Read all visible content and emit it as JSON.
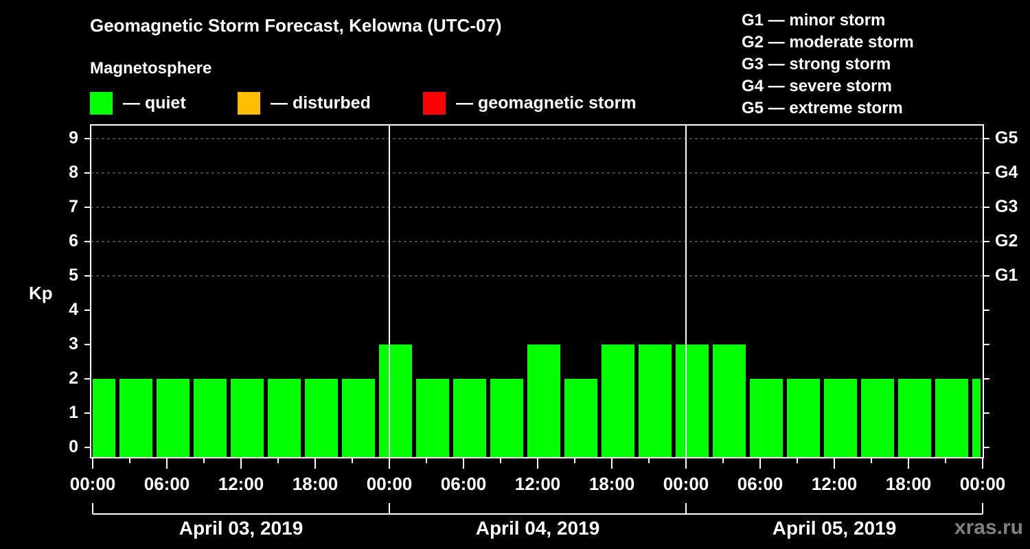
{
  "header": {
    "title": "Geomagnetic Storm Forecast, Kelowna (UTC-07)",
    "subtitle": "Magnetosphere"
  },
  "legend": [
    {
      "label": "— quiet",
      "color": "#00ff00"
    },
    {
      "label": "— disturbed",
      "color": "#ffbf00"
    },
    {
      "label": "— geomagnetic storm",
      "color": "#ff0000"
    }
  ],
  "g_legend": [
    "G1 — minor storm",
    "G2 — moderate storm",
    "G3 — strong storm",
    "G4 — severe storm",
    "G5 — extreme storm"
  ],
  "axes": {
    "ylabel": "Kp",
    "yticks": [
      "0",
      "1",
      "2",
      "3",
      "4",
      "5",
      "6",
      "7",
      "8",
      "9"
    ],
    "g_ticks": [
      {
        "label": "G1",
        "kp": 5
      },
      {
        "label": "G2",
        "kp": 6
      },
      {
        "label": "G3",
        "kp": 7
      },
      {
        "label": "G4",
        "kp": 8
      },
      {
        "label": "G5",
        "kp": 9
      }
    ],
    "xticks": [
      "00:00",
      "06:00",
      "12:00",
      "18:00",
      "00:00",
      "06:00",
      "12:00",
      "18:00",
      "00:00",
      "06:00",
      "12:00",
      "18:00",
      "00:00"
    ],
    "dates": [
      "April 03, 2019",
      "April 04, 2019",
      "April 05, 2019"
    ]
  },
  "watermark": "xras.ru",
  "chart_data": {
    "type": "bar",
    "title": "Geomagnetic Storm Forecast, Kelowna (UTC-07)",
    "xlabel": "",
    "ylabel": "Kp",
    "ylim": [
      0,
      9
    ],
    "grid": "dashed horizontal at Kp 5-9",
    "bar_interval_hours": 3,
    "bar_offset_note": "3-hour UTC blocks shifted to UTC-07; first and last bars partial",
    "categories": [
      "Apr03 ~-01:00",
      "Apr03 02:00",
      "Apr03 05:00",
      "Apr03 08:00",
      "Apr03 11:00",
      "Apr03 14:00",
      "Apr03 17:00",
      "Apr03 20:00",
      "Apr03 23:00",
      "Apr04 02:00",
      "Apr04 05:00",
      "Apr04 08:00",
      "Apr04 11:00",
      "Apr04 14:00",
      "Apr04 17:00",
      "Apr04 20:00",
      "Apr04 23:00",
      "Apr05 02:00",
      "Apr05 05:00",
      "Apr05 08:00",
      "Apr05 11:00",
      "Apr05 14:00",
      "Apr05 17:00",
      "Apr05 20:00",
      "Apr05 23:00"
    ],
    "values": [
      2,
      2,
      2,
      2,
      2,
      2,
      2,
      2,
      3,
      2,
      2,
      2,
      3,
      2,
      3,
      3,
      3,
      3,
      2,
      2,
      2,
      2,
      2,
      2,
      2
    ],
    "colors": [
      "quiet",
      "quiet",
      "quiet",
      "quiet",
      "quiet",
      "quiet",
      "quiet",
      "quiet",
      "quiet",
      "quiet",
      "quiet",
      "quiet",
      "quiet",
      "quiet",
      "quiet",
      "quiet",
      "quiet",
      "quiet",
      "quiet",
      "quiet",
      "quiet",
      "quiet",
      "quiet",
      "quiet",
      "quiet"
    ],
    "legend": [
      "quiet",
      "disturbed",
      "geomagnetic storm"
    ],
    "right_axis": {
      "G1": 5,
      "G2": 6,
      "G3": 7,
      "G4": 8,
      "G5": 9
    },
    "x_tick_labels": [
      "00:00",
      "06:00",
      "12:00",
      "18:00",
      "00:00",
      "06:00",
      "12:00",
      "18:00",
      "00:00",
      "06:00",
      "12:00",
      "18:00",
      "00:00"
    ],
    "date_labels": [
      "April 03, 2019",
      "April 04, 2019",
      "April 05, 2019"
    ]
  }
}
